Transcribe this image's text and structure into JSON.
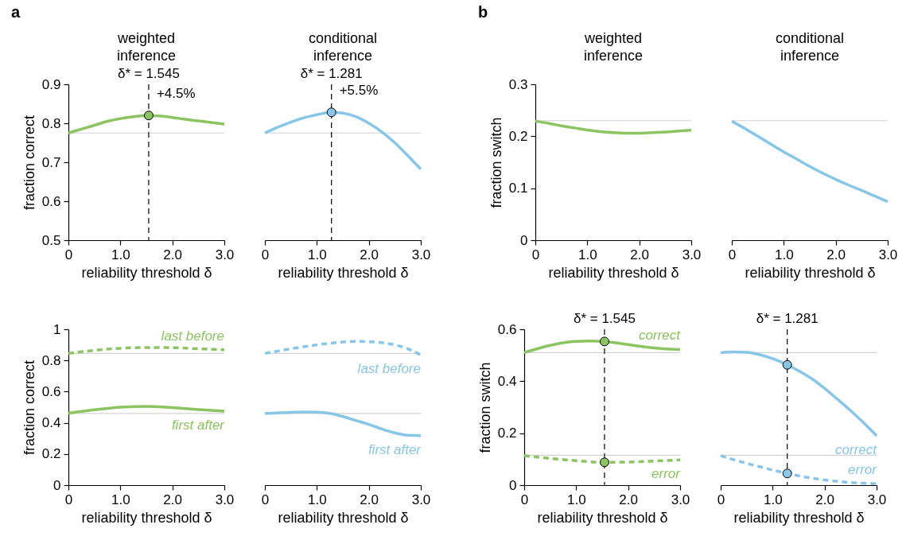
{
  "chart_data": [
    {
      "type": "line",
      "title": "weighted inference",
      "xlabel": "reliability threshold δ",
      "ylabel": "fraction correct",
      "annotations": [
        "a",
        {
          "text": "+4.5%",
          "x": 1.545,
          "y": 0.82
        }
      ],
      "xlim": [
        0,
        3
      ],
      "ylim": [
        0.5,
        0.9
      ],
      "xticks": [
        {
          "value": 0,
          "label": "0"
        },
        {
          "value": 1,
          "label": "1.0"
        },
        {
          "value": 2,
          "label": "2.0"
        },
        {
          "value": 3,
          "label": "3.0"
        }
      ],
      "yticks": [
        0.5,
        0.6,
        0.7,
        0.8,
        0.9
      ],
      "legend": false,
      "grid": false,
      "ref_lines": [
        {
          "axis": "y",
          "value": 0.775,
          "color": "#d3d3d3"
        },
        {
          "axis": "x",
          "value": 1.545,
          "label": "δ* = 1.545",
          "color": "#000000",
          "line_style": "dashed"
        }
      ],
      "series": [
        {
          "color": "#8cc461",
          "x": [
            0,
            0.25,
            0.5,
            0.75,
            1,
            1.25,
            1.545,
            1.75,
            2,
            2.25,
            2.5,
            2.75,
            3
          ],
          "values": [
            0.775,
            0.785,
            0.795,
            0.805,
            0.812,
            0.817,
            0.82,
            0.819,
            0.815,
            0.81,
            0.806,
            0.802,
            0.798
          ]
        },
        {
          "type": "scatter",
          "color": "#8cc461",
          "x": [
            1.545
          ],
          "values": [
            0.82
          ]
        }
      ]
    },
    {
      "type": "line",
      "title": "conditional inference",
      "xlabel": "reliability threshold δ",
      "annotations": [
        {
          "text": "+5.5%",
          "x": 1.281,
          "y": 0.828
        }
      ],
      "xlim": [
        0,
        3
      ],
      "ylim": [
        0.5,
        0.9
      ],
      "xticks": [
        {
          "value": 0,
          "label": "0"
        },
        {
          "value": 1,
          "label": "1.0"
        },
        {
          "value": 2,
          "label": "2.0"
        },
        {
          "value": 3,
          "label": "3.0"
        }
      ],
      "tick_labels": "x",
      "legend": false,
      "grid": false,
      "ref_lines": [
        {
          "axis": "y",
          "value": 0.775,
          "color": "#d3d3d3"
        },
        {
          "axis": "x",
          "value": 1.281,
          "label": "δ* = 1.281",
          "color": "#000000",
          "line_style": "dashed"
        }
      ],
      "series": [
        {
          "color": "#87c6e6",
          "x": [
            0,
            0.25,
            0.5,
            0.75,
            1,
            1.281,
            1.5,
            1.75,
            2,
            2.25,
            2.5,
            2.75,
            3
          ],
          "values": [
            0.775,
            0.79,
            0.803,
            0.814,
            0.822,
            0.828,
            0.826,
            0.817,
            0.8,
            0.778,
            0.75,
            0.717,
            0.682
          ]
        },
        {
          "type": "scatter",
          "color": "#87c6e6",
          "x": [
            1.281
          ],
          "values": [
            0.828
          ]
        }
      ]
    },
    {
      "type": "line",
      "title": "weighted inference",
      "xlabel": "reliability threshold δ",
      "ylabel": "fraction switch",
      "annotations": [
        "b"
      ],
      "xlim": [
        0,
        3
      ],
      "ylim": [
        0,
        0.3
      ],
      "xticks": [
        {
          "value": 0,
          "label": "0"
        },
        {
          "value": 1,
          "label": "1.0"
        },
        {
          "value": 2,
          "label": "2.0"
        },
        {
          "value": 3,
          "label": "3.0"
        }
      ],
      "yticks": [
        0,
        0.1,
        0.2,
        0.3
      ],
      "legend": false,
      "grid": false,
      "ref_lines": [
        {
          "axis": "y",
          "value": 0.23,
          "color": "#d3d3d3"
        }
      ],
      "series": [
        {
          "color": "#8cc461",
          "x": [
            0,
            0.25,
            0.5,
            0.75,
            1,
            1.25,
            1.5,
            1.75,
            2,
            2.25,
            2.5,
            2.75,
            3
          ],
          "values": [
            0.229,
            0.225,
            0.22,
            0.216,
            0.212,
            0.209,
            0.207,
            0.206,
            0.206,
            0.207,
            0.208,
            0.21,
            0.212
          ]
        }
      ]
    },
    {
      "type": "line",
      "title": "conditional inference",
      "xlabel": "reliability threshold δ",
      "xlim": [
        0,
        3
      ],
      "ylim": [
        0,
        0.3
      ],
      "xticks": [
        {
          "value": 0,
          "label": "0"
        },
        {
          "value": 1,
          "label": "1.0"
        },
        {
          "value": 2,
          "label": "2.0"
        },
        {
          "value": 3,
          "label": "3.0"
        }
      ],
      "tick_labels": "x",
      "legend": false,
      "grid": false,
      "ref_lines": [
        {
          "axis": "y",
          "value": 0.23,
          "color": "#d3d3d3"
        }
      ],
      "series": [
        {
          "color": "#87c6e6",
          "x": [
            0,
            0.25,
            0.5,
            0.75,
            1,
            1.25,
            1.5,
            1.75,
            2,
            2.25,
            2.5,
            2.75,
            3
          ],
          "values": [
            0.229,
            0.215,
            0.2,
            0.185,
            0.17,
            0.156,
            0.142,
            0.129,
            0.117,
            0.106,
            0.096,
            0.085,
            0.074
          ]
        }
      ]
    },
    {
      "type": "line",
      "xlabel": "reliability threshold δ",
      "ylabel": "fraction correct",
      "xlim": [
        0,
        3
      ],
      "ylim": [
        0,
        1
      ],
      "xticks": [
        {
          "value": 0,
          "label": "0"
        },
        {
          "value": 1,
          "label": "1.0"
        },
        {
          "value": 2,
          "label": "2.0"
        },
        {
          "value": 3,
          "label": "3.0"
        }
      ],
      "yticks": [
        0,
        0.2,
        0.4,
        0.6,
        0.8,
        1
      ],
      "legend": false,
      "grid": false,
      "ref_lines": [
        {
          "axis": "y",
          "value": 0.845,
          "color": "#d3d3d3"
        },
        {
          "axis": "y",
          "value": 0.46,
          "color": "#d3d3d3"
        }
      ],
      "series": [
        {
          "name": "last before",
          "color": "#8cc461",
          "line_style": "dashed",
          "x": [
            0,
            0.5,
            1,
            1.5,
            2,
            2.5,
            3
          ],
          "values": [
            0.845,
            0.865,
            0.878,
            0.883,
            0.882,
            0.875,
            0.868
          ]
        },
        {
          "name": "first after",
          "color": "#8cc461",
          "x": [
            0,
            0.5,
            1,
            1.5,
            2,
            2.5,
            3
          ],
          "values": [
            0.462,
            0.483,
            0.5,
            0.505,
            0.498,
            0.485,
            0.475
          ]
        }
      ]
    },
    {
      "type": "line",
      "xlabel": "reliability threshold δ",
      "xlim": [
        0,
        3
      ],
      "ylim": [
        0,
        1
      ],
      "xticks": [
        {
          "value": 0,
          "label": "0"
        },
        {
          "value": 1,
          "label": "1.0"
        },
        {
          "value": 2,
          "label": "2.0"
        },
        {
          "value": 3,
          "label": "3.0"
        }
      ],
      "tick_labels": "x",
      "legend": false,
      "grid": false,
      "ref_lines": [
        {
          "axis": "y",
          "value": 0.845,
          "color": "#d3d3d3"
        },
        {
          "axis": "y",
          "value": 0.46,
          "color": "#d3d3d3"
        }
      ],
      "series": [
        {
          "name": "last before",
          "color": "#87c6e6",
          "line_style": "dashed",
          "x": [
            0,
            0.5,
            1,
            1.5,
            1.8,
            2,
            2.5,
            2.75,
            3
          ],
          "values": [
            0.845,
            0.875,
            0.9,
            0.918,
            0.922,
            0.92,
            0.9,
            0.875,
            0.835
          ]
        },
        {
          "name": "first after",
          "color": "#87c6e6",
          "x": [
            0,
            0.5,
            0.75,
            1,
            1.25,
            1.5,
            1.75,
            2,
            2.25,
            2.5,
            2.75,
            3
          ],
          "values": [
            0.46,
            0.467,
            0.469,
            0.468,
            0.46,
            0.44,
            0.415,
            0.39,
            0.36,
            0.335,
            0.32,
            0.318
          ]
        }
      ]
    },
    {
      "type": "line",
      "xlabel": "reliability threshold δ",
      "ylabel": "fraction switch",
      "xlim": [
        0,
        3
      ],
      "ylim": [
        0,
        0.6
      ],
      "xticks": [
        {
          "value": 0,
          "label": "0"
        },
        {
          "value": 1,
          "label": "1.0"
        },
        {
          "value": 2,
          "label": "2.0"
        },
        {
          "value": 3,
          "label": "3.0"
        }
      ],
      "yticks": [
        0,
        0.2,
        0.4,
        0.6
      ],
      "legend": false,
      "grid": false,
      "ref_lines": [
        {
          "axis": "y",
          "value": 0.51,
          "color": "#d3d3d3"
        },
        {
          "axis": "y",
          "value": 0.115,
          "color": "#d3d3d3"
        },
        {
          "axis": "x",
          "value": 1.545,
          "label": "δ* = 1.545",
          "color": "#000000",
          "line_style": "dashed"
        }
      ],
      "series": [
        {
          "name": "correct",
          "color": "#8cc461",
          "x": [
            0,
            0.25,
            0.5,
            0.75,
            1,
            1.25,
            1.545,
            1.75,
            2,
            2.25,
            2.5,
            2.75,
            3
          ],
          "values": [
            0.51,
            0.525,
            0.538,
            0.548,
            0.553,
            0.555,
            0.553,
            0.548,
            0.541,
            0.534,
            0.528,
            0.524,
            0.522
          ]
        },
        {
          "name": "error",
          "color": "#8cc461",
          "line_style": "dashed",
          "x": [
            0,
            0.5,
            1,
            1.545,
            2,
            2.5,
            3
          ],
          "values": [
            0.113,
            0.103,
            0.094,
            0.088,
            0.089,
            0.093,
            0.097
          ]
        },
        {
          "type": "scatter",
          "color": "#8cc461",
          "x": [
            1.545,
            1.545
          ],
          "values": [
            0.553,
            0.088
          ]
        }
      ]
    },
    {
      "type": "line",
      "xlabel": "reliability threshold δ",
      "xlim": [
        0,
        3
      ],
      "ylim": [
        0,
        0.6
      ],
      "xticks": [
        {
          "value": 0,
          "label": "0"
        },
        {
          "value": 1,
          "label": "1.0"
        },
        {
          "value": 2,
          "label": "2.0"
        },
        {
          "value": 3,
          "label": "3.0"
        }
      ],
      "tick_labels": "x",
      "legend": false,
      "grid": false,
      "ref_lines": [
        {
          "axis": "y",
          "value": 0.51,
          "color": "#d3d3d3"
        },
        {
          "axis": "y",
          "value": 0.115,
          "color": "#d3d3d3"
        },
        {
          "axis": "x",
          "value": 1.281,
          "label": "δ* = 1.281",
          "color": "#000000",
          "line_style": "dashed"
        }
      ],
      "series": [
        {
          "name": "correct",
          "color": "#87c6e6",
          "x": [
            0,
            0.25,
            0.5,
            0.75,
            1,
            1.281,
            1.5,
            1.75,
            2,
            2.25,
            2.5,
            2.75,
            3
          ],
          "values": [
            0.51,
            0.513,
            0.511,
            0.502,
            0.487,
            0.463,
            0.44,
            0.41,
            0.372,
            0.33,
            0.287,
            0.24,
            0.19
          ]
        },
        {
          "name": "error",
          "color": "#87c6e6",
          "line_style": "dashed",
          "x": [
            0,
            0.25,
            0.5,
            0.75,
            1,
            1.281,
            1.5,
            2,
            2.5,
            3
          ],
          "values": [
            0.113,
            0.098,
            0.084,
            0.071,
            0.058,
            0.045,
            0.036,
            0.02,
            0.01,
            0.005
          ]
        },
        {
          "type": "scatter",
          "color": "#87c6e6",
          "x": [
            1.281,
            1.281
          ],
          "values": [
            0.463,
            0.045
          ]
        }
      ]
    }
  ]
}
